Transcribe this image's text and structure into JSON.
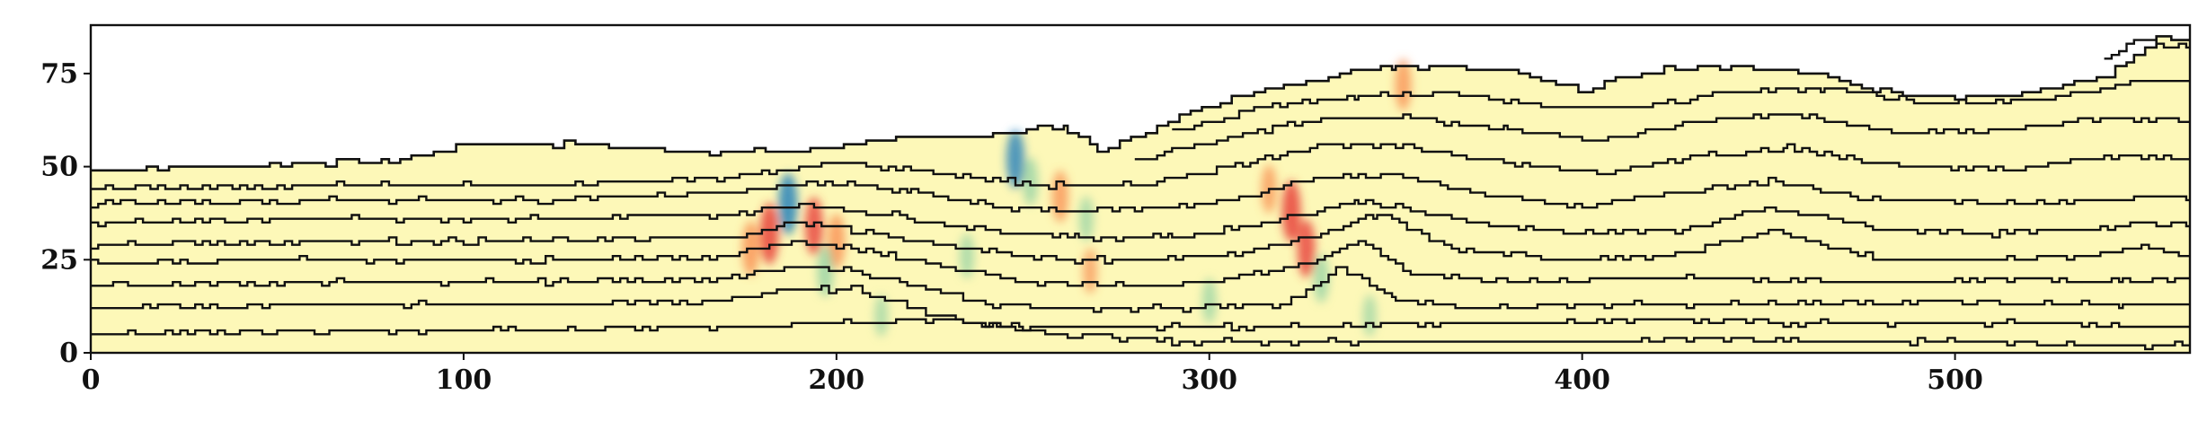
{
  "chart_data": {
    "type": "heatmap",
    "title": "",
    "xlabel": "",
    "ylabel": "",
    "xlim": [
      0,
      563
    ],
    "ylim": [
      0,
      88
    ],
    "x_ticks": [
      0,
      100,
      200,
      300,
      400,
      500
    ],
    "y_ticks": [
      0,
      25,
      50,
      75
    ],
    "x_tick_labels": [
      "0",
      "100",
      "200",
      "300",
      "400",
      "500"
    ],
    "y_tick_labels": [
      "0",
      "25",
      "50",
      "75"
    ],
    "grid": false,
    "legend": "none",
    "colormap": "Spectral_r (diverging, pale-yellow background)",
    "background_color": "#fdf8b8",
    "contour_color": "#111111",
    "top_surface": {
      "x": [
        0,
        30,
        60,
        80,
        100,
        130,
        160,
        190,
        210,
        230,
        245,
        255,
        262,
        270,
        280,
        300,
        320,
        340,
        350,
        360,
        380,
        390,
        400,
        410,
        425,
        440,
        460,
        480,
        500,
        520,
        540,
        548,
        555,
        563
      ],
      "y": [
        49,
        50,
        51,
        51,
        56,
        56,
        54,
        54,
        57,
        58,
        59,
        61,
        60,
        54,
        58,
        67,
        72,
        76,
        77,
        77,
        76,
        73,
        70,
        74,
        77,
        77,
        75,
        70,
        68,
        70,
        74,
        80,
        85,
        84
      ]
    },
    "contour_lines": [
      {
        "x": [
          0,
          60,
          120,
          170,
          200,
          230,
          260,
          290,
          320,
          345,
          370,
          400,
          430,
          460,
          490,
          520,
          545,
          563
        ],
        "y": [
          5,
          6,
          6,
          7,
          8,
          9,
          5,
          3,
          3,
          3,
          3,
          3,
          4,
          3,
          3,
          3,
          2,
          2
        ]
      },
      {
        "x": [
          0,
          60,
          120,
          170,
          190,
          205,
          220,
          235,
          250,
          270,
          300,
          330,
          360,
          390,
          420,
          450,
          490,
          520,
          545,
          563
        ],
        "y": [
          12,
          13,
          13,
          14,
          17,
          17,
          12,
          8,
          7,
          7,
          7,
          7,
          8,
          8,
          9,
          8,
          8,
          8,
          7,
          7
        ]
      },
      {
        "x": [
          0,
          60,
          120,
          170,
          190,
          205,
          220,
          240,
          265,
          295,
          320,
          335,
          350,
          370,
          400,
          430,
          460,
          490,
          520,
          545,
          563
        ],
        "y": [
          18,
          19,
          19,
          20,
          23,
          22,
          18,
          13,
          12,
          12,
          13,
          23,
          14,
          12,
          13,
          13,
          13,
          14,
          13,
          13,
          13
        ]
      },
      {
        "x": [
          0,
          60,
          120,
          170,
          190,
          210,
          230,
          250,
          275,
          300,
          325,
          340,
          355,
          380,
          410,
          440,
          470,
          500,
          520,
          545,
          563
        ],
        "y": [
          24,
          25,
          25,
          26,
          30,
          27,
          23,
          19,
          18,
          19,
          24,
          30,
          21,
          19,
          20,
          20,
          19,
          19,
          20,
          19,
          20
        ]
      },
      {
        "x": [
          0,
          60,
          120,
          170,
          190,
          210,
          235,
          260,
          285,
          310,
          330,
          345,
          365,
          395,
          425,
          450,
          480,
          510,
          535,
          550,
          563
        ],
        "y": [
          29,
          30,
          30,
          31,
          35,
          32,
          28,
          25,
          25,
          27,
          32,
          37,
          28,
          25,
          26,
          33,
          25,
          25,
          26,
          28,
          26
        ]
      },
      {
        "x": [
          0,
          60,
          120,
          170,
          190,
          215,
          240,
          265,
          290,
          315,
          340,
          365,
          395,
          425,
          450,
          480,
          510,
          535,
          550,
          563
        ],
        "y": [
          35,
          36,
          36,
          37,
          40,
          37,
          33,
          31,
          31,
          35,
          41,
          36,
          32,
          33,
          39,
          33,
          32,
          33,
          35,
          34
        ]
      },
      {
        "x": [
          0,
          60,
          120,
          170,
          195,
          220,
          245,
          270,
          300,
          330,
          350,
          370,
          400,
          425,
          450,
          480,
          510,
          540,
          563
        ],
        "y": [
          40,
          41,
          41,
          43,
          46,
          43,
          39,
          38,
          40,
          47,
          48,
          43,
          39,
          43,
          46,
          41,
          40,
          41,
          42
        ]
      },
      {
        "x": [
          0,
          60,
          120,
          170,
          200,
          230,
          255,
          280,
          305,
          330,
          355,
          380,
          405,
          430,
          455,
          485,
          515,
          540,
          563
        ],
        "y": [
          44,
          45,
          45,
          47,
          51,
          48,
          45,
          45,
          50,
          56,
          55,
          51,
          48,
          53,
          55,
          50,
          49,
          53,
          52
        ]
      },
      {
        "x": [
          280,
          305,
          330,
          355,
          380,
          405,
          430,
          455,
          485,
          515,
          540,
          563
        ],
        "y": [
          52,
          58,
          63,
          63,
          60,
          57,
          62,
          64,
          59,
          60,
          63,
          62
        ]
      },
      {
        "x": [
          290,
          315,
          340,
          365,
          390,
          415,
          440,
          465,
          495,
          525,
          548,
          563
        ],
        "y": [
          59,
          66,
          69,
          70,
          66,
          66,
          70,
          71,
          67,
          68,
          73,
          73
        ]
      },
      {
        "x": [
          540,
          548,
          556,
          563
        ],
        "y": [
          79,
          84,
          83,
          82
        ]
      }
    ],
    "anomalies": [
      {
        "x": 182,
        "y": 32,
        "value": 0.9
      },
      {
        "x": 187,
        "y": 40,
        "value": -0.9
      },
      {
        "x": 194,
        "y": 34,
        "value": 0.8
      },
      {
        "x": 200,
        "y": 30,
        "value": 0.7
      },
      {
        "x": 197,
        "y": 22,
        "value": -0.6
      },
      {
        "x": 177,
        "y": 28,
        "value": 0.7
      },
      {
        "x": 248,
        "y": 52,
        "value": -0.8
      },
      {
        "x": 252,
        "y": 46,
        "value": -0.5
      },
      {
        "x": 260,
        "y": 42,
        "value": 0.6
      },
      {
        "x": 267,
        "y": 36,
        "value": -0.4
      },
      {
        "x": 268,
        "y": 22,
        "value": 0.4
      },
      {
        "x": 235,
        "y": 26,
        "value": -0.4
      },
      {
        "x": 322,
        "y": 38,
        "value": 0.9
      },
      {
        "x": 326,
        "y": 28,
        "value": 0.8
      },
      {
        "x": 330,
        "y": 20,
        "value": -0.5
      },
      {
        "x": 316,
        "y": 44,
        "value": 0.5
      },
      {
        "x": 352,
        "y": 72,
        "value": 0.6
      },
      {
        "x": 343,
        "y": 10,
        "value": -0.3
      },
      {
        "x": 300,
        "y": 14,
        "value": -0.4
      },
      {
        "x": 212,
        "y": 10,
        "value": -0.3
      }
    ]
  }
}
